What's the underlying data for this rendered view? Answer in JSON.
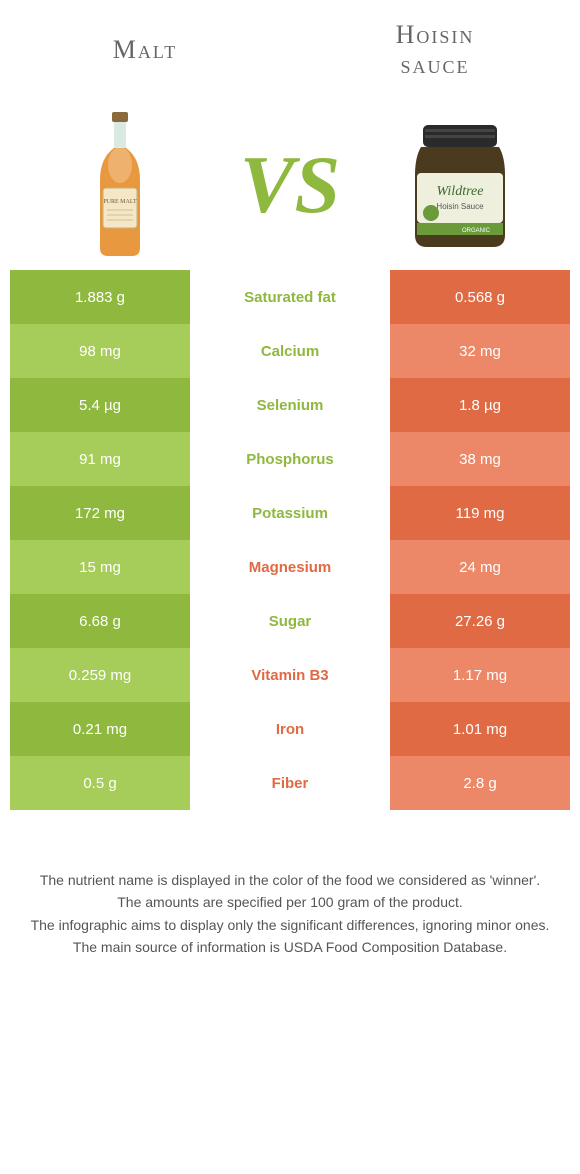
{
  "colors": {
    "green_light": "#a6cc5a",
    "green_dark": "#8fb83e",
    "orange_light": "#ec8867",
    "orange_dark": "#e06a43",
    "vs_color": "#8fb83e",
    "label_green": "#8fb83e",
    "label_orange": "#e06a43"
  },
  "header": {
    "left": "Malt",
    "right_line1": "Hoisin",
    "right_line2": "sauce"
  },
  "vs": "VS",
  "rows": [
    {
      "left": "1.883 g",
      "label": "Saturated fat",
      "right": "0.568 g",
      "winner": "left"
    },
    {
      "left": "98 mg",
      "label": "Calcium",
      "right": "32 mg",
      "winner": "left"
    },
    {
      "left": "5.4 µg",
      "label": "Selenium",
      "right": "1.8 µg",
      "winner": "left"
    },
    {
      "left": "91 mg",
      "label": "Phosphorus",
      "right": "38 mg",
      "winner": "left"
    },
    {
      "left": "172 mg",
      "label": "Potassium",
      "right": "119 mg",
      "winner": "left"
    },
    {
      "left": "15 mg",
      "label": "Magnesium",
      "right": "24 mg",
      "winner": "right"
    },
    {
      "left": "6.68 g",
      "label": "Sugar",
      "right": "27.26 g",
      "winner": "left"
    },
    {
      "left": "0.259 mg",
      "label": "Vitamin B3",
      "right": "1.17 mg",
      "winner": "right"
    },
    {
      "left": "0.21 mg",
      "label": "Iron",
      "right": "1.01 mg",
      "winner": "right"
    },
    {
      "left": "0.5 g",
      "label": "Fiber",
      "right": "2.8 g",
      "winner": "right"
    }
  ],
  "notes": [
    "The nutrient name is displayed in the color of the food we considered as 'winner'.",
    "The amounts are specified per 100 gram of the product.",
    "The infographic aims to display only the significant differences, ignoring minor ones.",
    "The main source of information is USDA Food Composition Database."
  ]
}
